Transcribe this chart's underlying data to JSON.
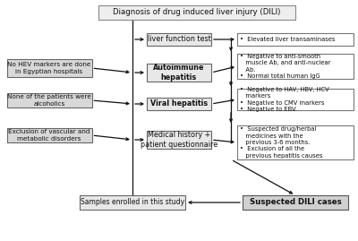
{
  "bg_color": "#ffffff",
  "box_bg_light": "#e8e8e8",
  "box_bg_white": "#ffffff",
  "box_edge": "#666666",
  "text_color": "#111111",
  "arrow_color": "#111111",
  "title": "Diagnosis of drug induced liver injury (DILI)",
  "center_boxes": [
    {
      "label": "liver function test",
      "bold": false
    },
    {
      "label": "Autoimmune\nhepatitis",
      "bold": true
    },
    {
      "label": "Viral hepatitis",
      "bold": true
    },
    {
      "label": "Medical history +\npatient questionnaire",
      "bold": false
    }
  ],
  "left_boxes": [
    {
      "label": "No HEV markers are done\nin Egyptian hospitals"
    },
    {
      "label": "None of the patients were\nalcoholics"
    },
    {
      "label": "Exclusion of vascular and\nmetabolic disorders"
    }
  ],
  "right_boxes": [
    {
      "label": "•  Elevated liver transaminases"
    },
    {
      "label": "•  Negative to anti-smooth\n   muscle Ab, and anti-nuclear\n   Ab.\n•  Normal total human IgG"
    },
    {
      "label": "•  Negative to HAV, HBV, HCV\n   markers\n•  Negative to CMV markers\n•  Negative to EBV."
    },
    {
      "label": "•  Suspected drug/herbal\n   medicines with the\n   previous 3-6 months.\n•  Exclusion of all the\n   previous hepatitis causes"
    }
  ],
  "bottom_left_label": "Samples enrolled in this study",
  "bottom_right_label": "Suspected DILI cases"
}
